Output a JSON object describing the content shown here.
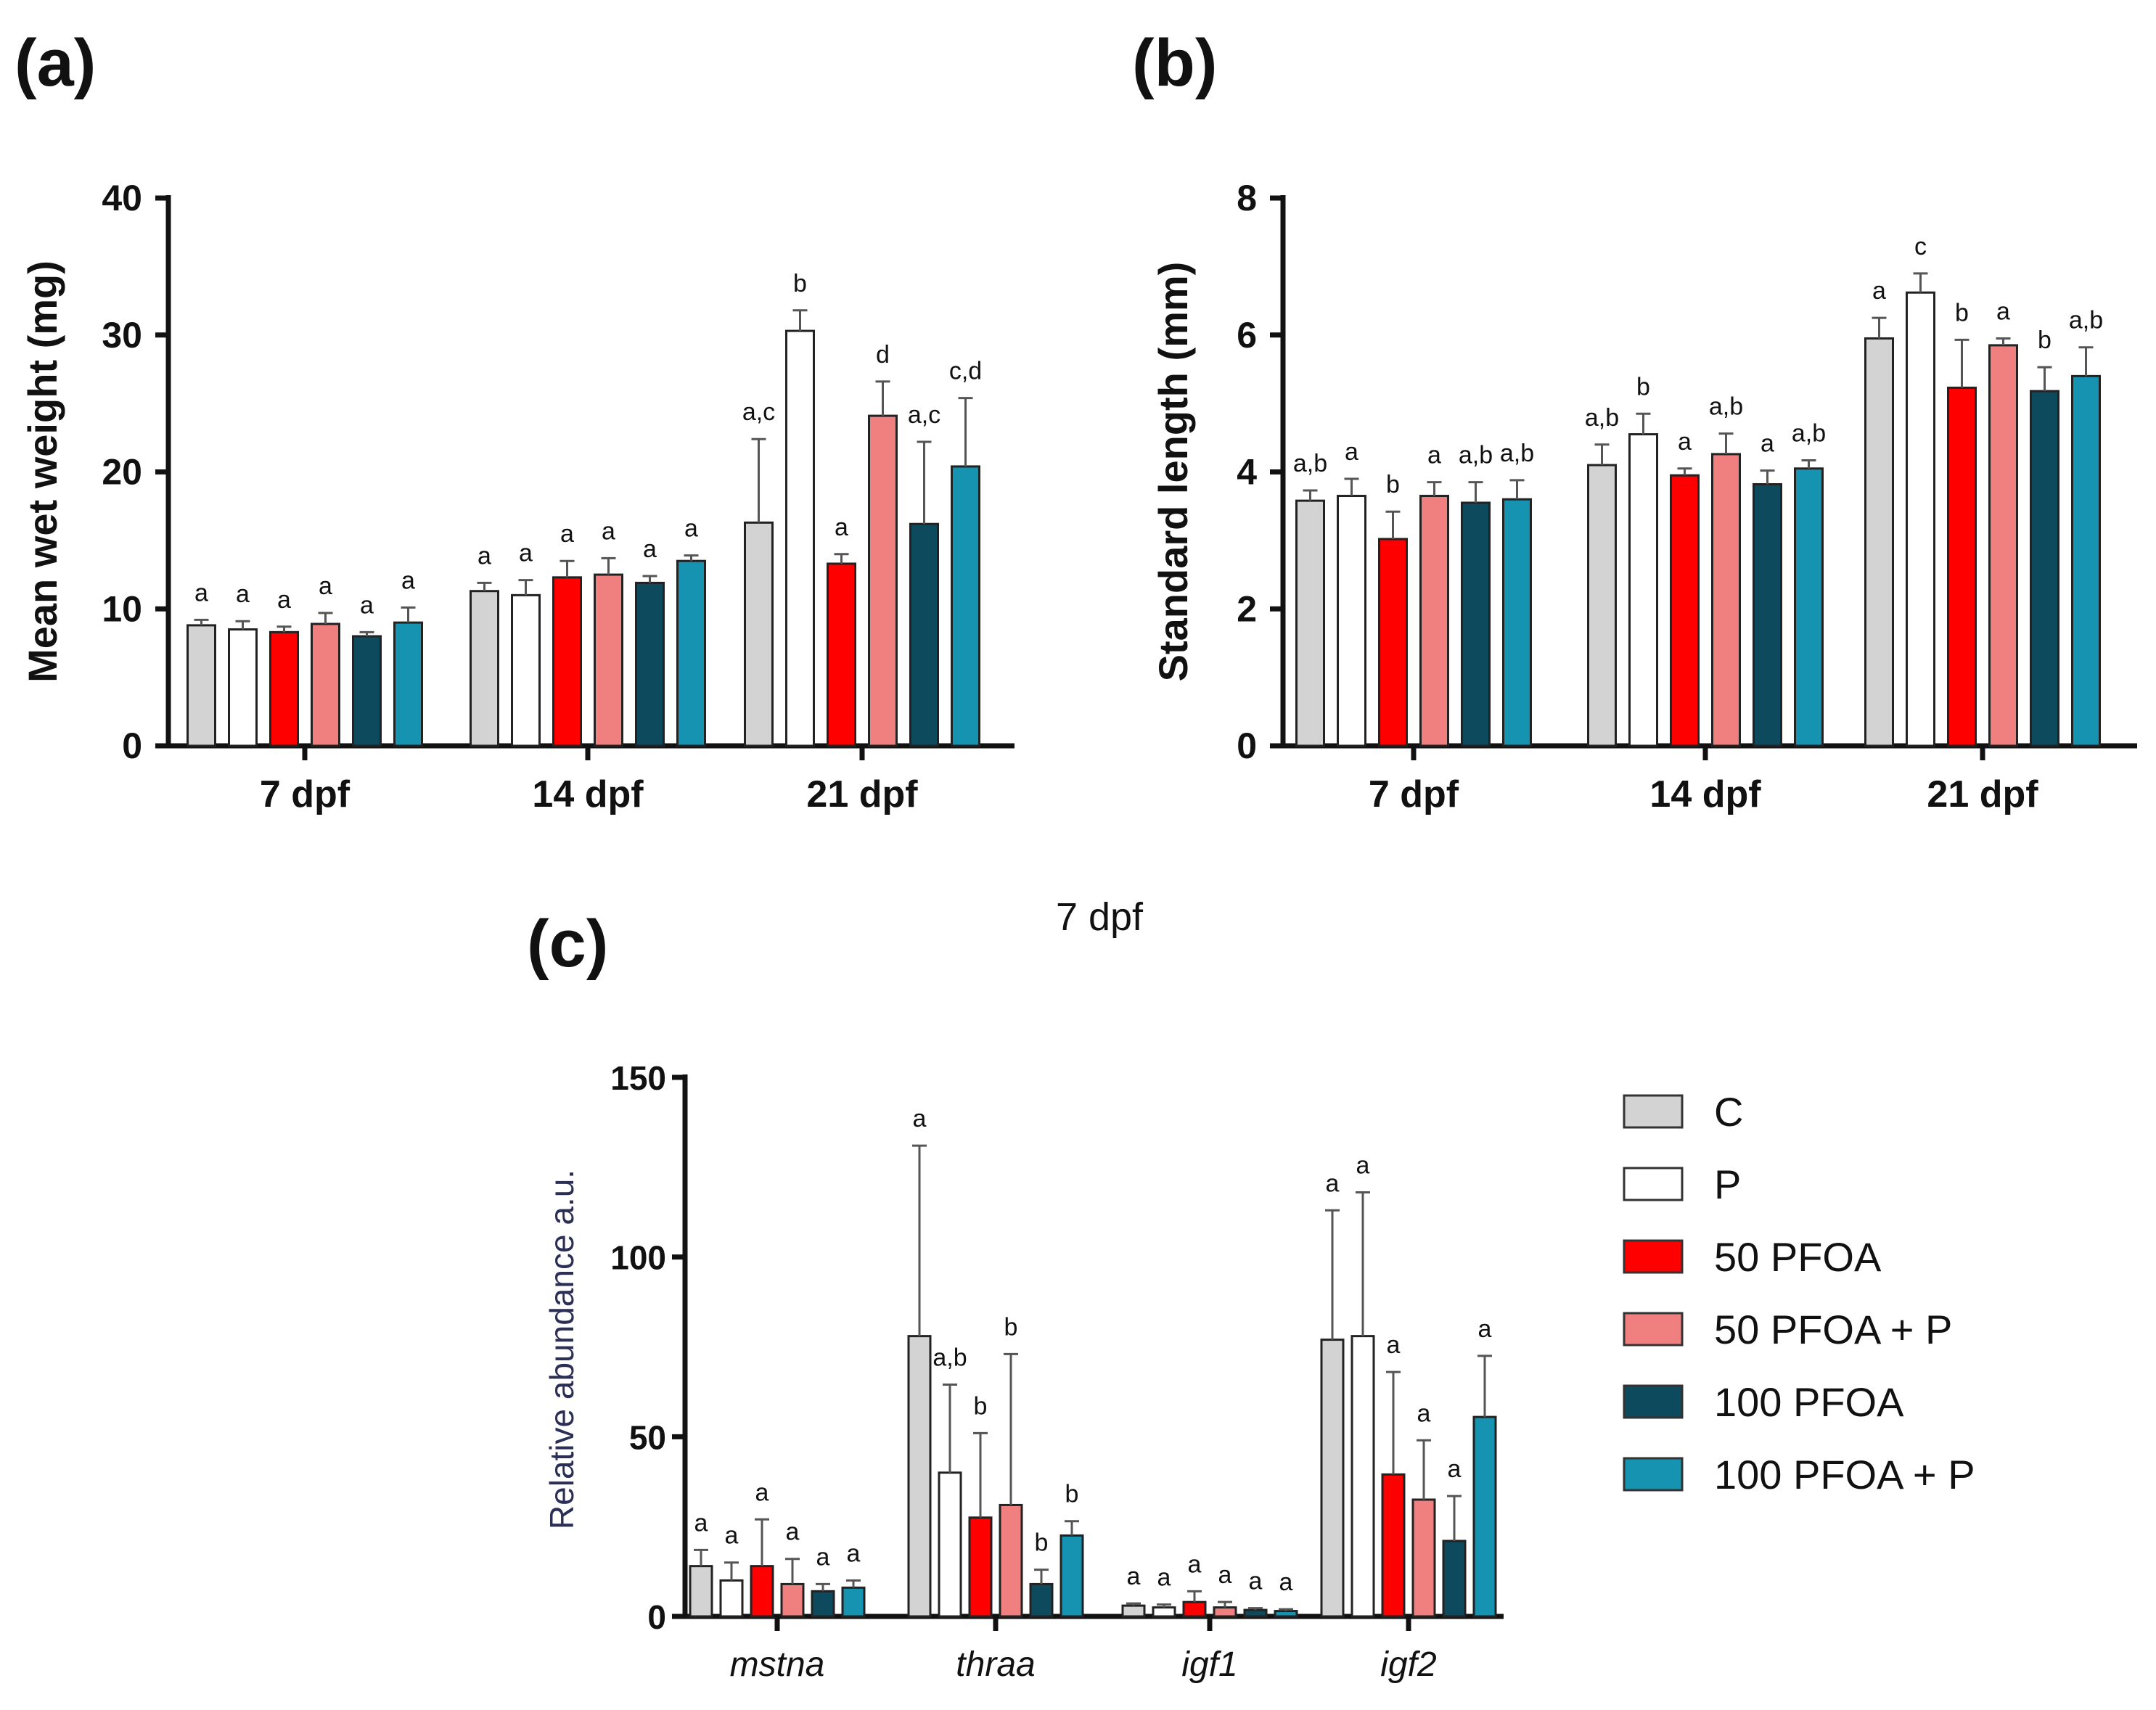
{
  "chart_data": [
    {
      "panel": "(a)",
      "type": "bar",
      "ylabel": "Mean wet weight  (mg)",
      "ylim": [
        0,
        40
      ],
      "yticks": [
        "0",
        "10",
        "20",
        "30",
        "40"
      ],
      "categories": [
        "7 dpf",
        "14 dpf",
        "21 dpf"
      ],
      "series": [
        {
          "name": "C",
          "color": "#d3d3d3",
          "values": [
            8.8,
            11.3,
            16.3
          ],
          "errors": [
            0.4,
            0.6,
            6.1
          ],
          "labels": [
            "a",
            "a",
            "a,c"
          ]
        },
        {
          "name": "P",
          "color": "#ffffff",
          "values": [
            8.5,
            11.0,
            30.3
          ],
          "errors": [
            0.6,
            1.1,
            1.5
          ],
          "labels": [
            "a",
            "a",
            "b"
          ]
        },
        {
          "name": "50 PFOA",
          "color": "#ff0000",
          "values": [
            8.3,
            12.3,
            13.3
          ],
          "errors": [
            0.4,
            1.2,
            0.7
          ],
          "labels": [
            "a",
            "a",
            "a"
          ]
        },
        {
          "name": "50 PFOA + P",
          "color": "#f08080",
          "values": [
            8.9,
            12.5,
            24.1
          ],
          "errors": [
            0.8,
            1.2,
            2.5
          ],
          "labels": [
            "a",
            "a",
            "d"
          ]
        },
        {
          "name": "100 PFOA",
          "color": "#0d4a5e",
          "values": [
            8.0,
            11.9,
            16.2
          ],
          "errors": [
            0.3,
            0.5,
            6.0
          ],
          "labels": [
            "a",
            "a",
            "a,c"
          ]
        },
        {
          "name": "100 PFOA + P",
          "color": "#1593b0",
          "values": [
            9.0,
            13.5,
            20.4
          ],
          "errors": [
            1.1,
            0.4,
            5.0
          ],
          "labels": [
            "a",
            "a",
            "c,d"
          ]
        }
      ]
    },
    {
      "panel": "(b)",
      "type": "bar",
      "ylabel": "Standard length (mm)",
      "ylim": [
        0,
        8
      ],
      "yticks": [
        "0",
        "2",
        "4",
        "6",
        "8"
      ],
      "categories": [
        "7 dpf",
        "14 dpf",
        "21 dpf"
      ],
      "series": [
        {
          "name": "C",
          "color": "#d3d3d3",
          "values": [
            3.58,
            4.1,
            5.95
          ],
          "errors": [
            0.15,
            0.3,
            0.3
          ],
          "labels": [
            "a,b",
            "a,b",
            "a"
          ]
        },
        {
          "name": "P",
          "color": "#ffffff",
          "values": [
            3.65,
            4.55,
            6.62
          ],
          "errors": [
            0.25,
            0.3,
            0.28
          ],
          "labels": [
            "a",
            "b",
            "c"
          ]
        },
        {
          "name": "50 PFOA",
          "color": "#ff0000",
          "values": [
            3.02,
            3.95,
            5.23
          ],
          "errors": [
            0.4,
            0.1,
            0.7
          ],
          "labels": [
            "b",
            "a",
            "b"
          ]
        },
        {
          "name": "50 PFOA + P",
          "color": "#f08080",
          "values": [
            3.65,
            4.26,
            5.85
          ],
          "errors": [
            0.2,
            0.3,
            0.1
          ],
          "labels": [
            "a",
            "a,b",
            "a"
          ]
        },
        {
          "name": "100 PFOA",
          "color": "#0d4a5e",
          "values": [
            3.55,
            3.82,
            5.18
          ],
          "errors": [
            0.3,
            0.2,
            0.35
          ],
          "labels": [
            "a,b",
            "a",
            "b"
          ]
        },
        {
          "name": "100 PFOA + P",
          "color": "#1593b0",
          "values": [
            3.6,
            4.05,
            5.4
          ],
          "errors": [
            0.28,
            0.12,
            0.42
          ],
          "labels": [
            "a,b",
            "a,b",
            "a,b"
          ]
        }
      ]
    },
    {
      "panel": "(c)",
      "type": "bar",
      "title": "7 dpf",
      "ylabel": "Relative abundance a.u.",
      "ylim": [
        0,
        150
      ],
      "yticks": [
        "0",
        "50",
        "100",
        "150"
      ],
      "categories": [
        "mstna",
        "thraa",
        "igf1",
        "igf2"
      ],
      "series": [
        {
          "name": "C",
          "color": "#d3d3d3",
          "values": [
            14,
            78,
            3,
            77
          ],
          "errors": [
            4.5,
            53,
            0.6,
            36
          ],
          "labels": [
            "a",
            "a",
            "a",
            "a"
          ]
        },
        {
          "name": "P",
          "color": "#ffffff",
          "values": [
            10,
            40,
            2.5,
            78
          ],
          "errors": [
            5,
            24.5,
            0.8,
            40
          ],
          "labels": [
            "a",
            "a,b",
            "a",
            "a"
          ]
        },
        {
          "name": "50 PFOA",
          "color": "#ff0000",
          "values": [
            14,
            27.5,
            4,
            39.5
          ],
          "errors": [
            13,
            23.5,
            3,
            28.5
          ],
          "labels": [
            "a",
            "b",
            "a",
            "a"
          ]
        },
        {
          "name": "50 PFOA + P",
          "color": "#f08080",
          "values": [
            9,
            31,
            2.5,
            32.5
          ],
          "errors": [
            7,
            42,
            1.5,
            16.5
          ],
          "labels": [
            "a",
            "b",
            "a",
            "a"
          ]
        },
        {
          "name": "100 PFOA",
          "color": "#0d4a5e",
          "values": [
            7,
            9,
            1.8,
            21
          ],
          "errors": [
            2,
            4,
            0.5,
            12.5
          ],
          "labels": [
            "a",
            "b",
            "a",
            "a"
          ]
        },
        {
          "name": "100 PFOA + P",
          "color": "#1593b0",
          "values": [
            8,
            22.5,
            1.5,
            55.5
          ],
          "errors": [
            2,
            4,
            0.5,
            17
          ],
          "labels": [
            "a",
            "b",
            "a",
            "a"
          ]
        }
      ]
    }
  ],
  "legend": {
    "placement": "right of panel (c)",
    "entries": [
      {
        "name": "C",
        "color": "#d3d3d3"
      },
      {
        "name": "P",
        "color": "#ffffff"
      },
      {
        "name": "50 PFOA",
        "color": "#ff0000"
      },
      {
        "name": "50 PFOA + P",
        "color": "#f08080"
      },
      {
        "name": "100 PFOA",
        "color": "#0d4a5e"
      },
      {
        "name": "100 PFOA + P",
        "color": "#1593b0"
      }
    ]
  }
}
